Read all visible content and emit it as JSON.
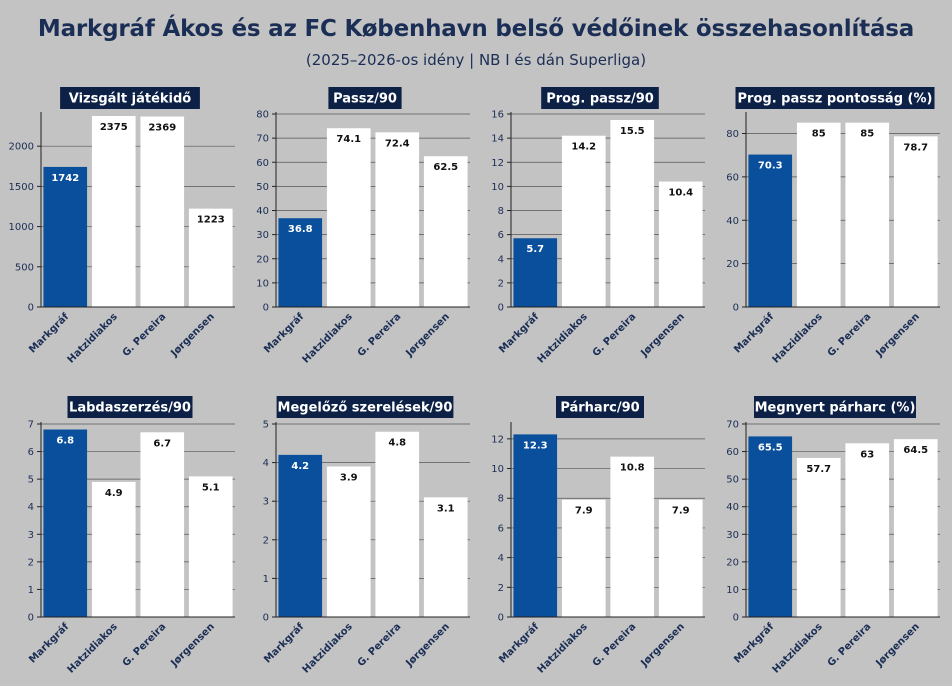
{
  "title": "Markgráf Ákos és az FC København belső védőinek összehasonlítása",
  "subtitle": "(2025–2026-os idény | NB I és dán Superliga)",
  "colors": {
    "highlight": "#0a4f9c",
    "other": "#ffffff",
    "background": "#c3c3c3",
    "title_band": "#0d2147"
  },
  "chart_data": [
    {
      "type": "bar",
      "title": "Vizsgált játékidő",
      "categories": [
        "Markgráf",
        "Hatzidiakos",
        "G. Pereira",
        "Jørgensen"
      ],
      "values": [
        1742,
        2375,
        2369,
        1223
      ],
      "value_labels": [
        "1742",
        "2375",
        "2369",
        "1223"
      ],
      "ylim": [
        0,
        2400
      ],
      "yticks": [
        0,
        500,
        1000,
        1500,
        2000
      ],
      "grid": true
    },
    {
      "type": "bar",
      "title": "Passz/90",
      "categories": [
        "Markgráf",
        "Hatzidiakos",
        "G. Pereira",
        "Jørgensen"
      ],
      "values": [
        36.8,
        74.1,
        72.4,
        62.5
      ],
      "value_labels": [
        "36.8",
        "74.1",
        "72.4",
        "62.5"
      ],
      "ylim": [
        0,
        80
      ],
      "yticks": [
        0,
        10,
        20,
        30,
        40,
        50,
        60,
        70,
        80
      ],
      "grid": true
    },
    {
      "type": "bar",
      "title": "Prog. passz/90",
      "categories": [
        "Markgráf",
        "Hatzidiakos",
        "G. Pereira",
        "Jørgensen"
      ],
      "values": [
        5.7,
        14.2,
        15.5,
        10.4
      ],
      "value_labels": [
        "5.7",
        "14.2",
        "15.5",
        "10.4"
      ],
      "ylim": [
        0,
        16
      ],
      "yticks": [
        0,
        2,
        4,
        6,
        8,
        10,
        12,
        14,
        16
      ],
      "grid": true
    },
    {
      "type": "bar",
      "title": "Prog. passz pontosság (%)",
      "categories": [
        "Markgráf",
        "Hatzidiakos",
        "G. Pereira",
        "Jørgensen"
      ],
      "values": [
        70.3,
        85,
        85,
        78.7
      ],
      "value_labels": [
        "70.3",
        "85",
        "85",
        "78.7"
      ],
      "ylim": [
        0,
        89
      ],
      "yticks": [
        0,
        20,
        40,
        60,
        80
      ],
      "grid": true
    },
    {
      "type": "bar",
      "title": "Labdaszerzés/90",
      "categories": [
        "Markgráf",
        "Hatzidiakos",
        "G. Pereira",
        "Jørgensen"
      ],
      "values": [
        6.8,
        4.9,
        6.7,
        5.1
      ],
      "value_labels": [
        "6.8",
        "4.9",
        "6.7",
        "5.1"
      ],
      "ylim": [
        0,
        7
      ],
      "yticks": [
        0,
        1,
        2,
        3,
        4,
        5,
        6,
        7
      ],
      "grid": true
    },
    {
      "type": "bar",
      "title": "Megelőző szerelések/90",
      "categories": [
        "Markgráf",
        "Hatzidiakos",
        "G. Pereira",
        "Jørgensen"
      ],
      "values": [
        4.2,
        3.9,
        4.8,
        3.1
      ],
      "value_labels": [
        "4.2",
        "3.9",
        "4.8",
        "3.1"
      ],
      "ylim": [
        0,
        5
      ],
      "yticks": [
        0,
        1,
        2,
        3,
        4,
        5
      ],
      "grid": true
    },
    {
      "type": "bar",
      "title": "Párharc/90",
      "categories": [
        "Markgráf",
        "Hatzidiakos",
        "G. Pereira",
        "Jørgensen"
      ],
      "values": [
        12.3,
        7.9,
        10.8,
        7.9
      ],
      "value_labels": [
        "12.3",
        "7.9",
        "10.8",
        "7.9"
      ],
      "ylim": [
        0,
        13
      ],
      "yticks": [
        0,
        2,
        4,
        6,
        8,
        10,
        12
      ],
      "grid": true
    },
    {
      "type": "bar",
      "title": "Megnyert párharc (%)",
      "categories": [
        "Markgráf",
        "Hatzidiakos",
        "G. Pereira",
        "Jørgensen"
      ],
      "values": [
        65.5,
        57.7,
        63,
        64.5
      ],
      "value_labels": [
        "65.5",
        "57.7",
        "63",
        "64.5"
      ],
      "ylim": [
        0,
        70
      ],
      "yticks": [
        0,
        10,
        20,
        30,
        40,
        50,
        60,
        70
      ],
      "grid": true
    }
  ]
}
